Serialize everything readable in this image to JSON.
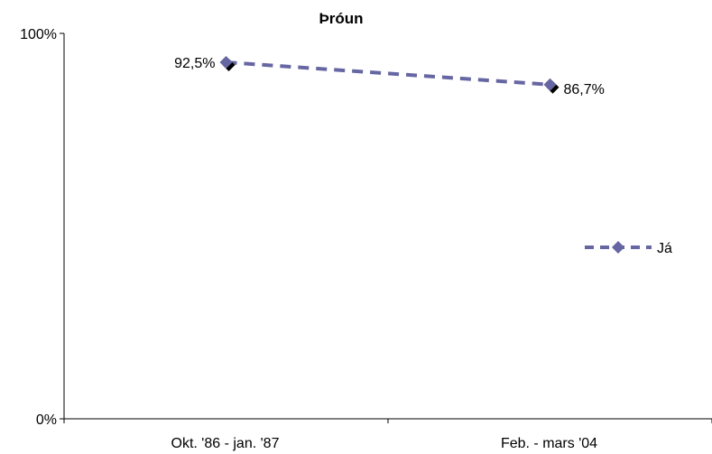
{
  "chart_data": {
    "type": "line",
    "title": "Þróun",
    "categories": [
      "Okt. '86 - jan. '87",
      "Feb. - mars '04"
    ],
    "series": [
      {
        "name": "Já",
        "values": [
          92.5,
          86.7
        ],
        "labels": [
          "92,5%",
          "86,7%"
        ]
      }
    ],
    "ylim": [
      0,
      100
    ],
    "y_tick_labels": [
      "0%",
      "100%"
    ],
    "grid": false,
    "legend_position": "right",
    "series_color": "#6666a3"
  }
}
